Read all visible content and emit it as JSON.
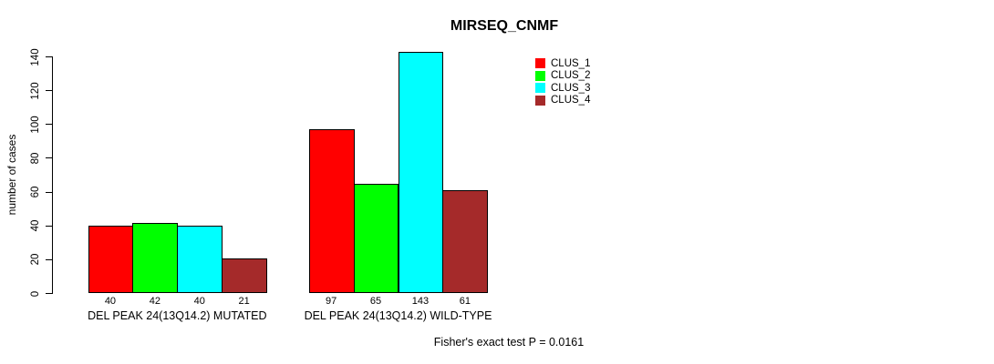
{
  "chart_data": {
    "type": "bar",
    "title": "MIRSEQ_CNMF",
    "ylabel": "number of cases",
    "xlabel": "",
    "categories": [
      "DEL PEAK 24(13Q14.2) MUTATED",
      "DEL PEAK 24(13Q14.2) WILD-TYPE"
    ],
    "series": [
      {
        "name": "CLUS_1",
        "color": "#ff0000",
        "values": [
          40,
          97
        ]
      },
      {
        "name": "CLUS_2",
        "color": "#00ff00",
        "values": [
          42,
          65
        ]
      },
      {
        "name": "CLUS_3",
        "color": "#00ffff",
        "values": [
          40,
          143
        ]
      },
      {
        "name": "CLUS_4",
        "color": "#a52a2a",
        "values": [
          21,
          61
        ]
      }
    ],
    "bar_value_labels": [
      [
        "40",
        "42",
        "40",
        "21"
      ],
      [
        "97",
        "65",
        "143",
        "61"
      ]
    ],
    "yticks": [
      "0",
      "20",
      "40",
      "60",
      "80",
      "100",
      "120",
      "140"
    ],
    "ylim": [
      0,
      145
    ],
    "grid": false,
    "legend_position": "top-right",
    "annotation": "Fisher's exact test P = 0.0161"
  }
}
